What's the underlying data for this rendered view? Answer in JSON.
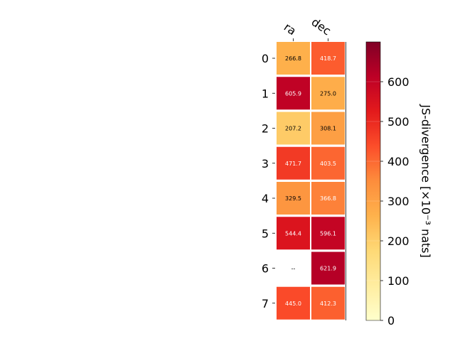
{
  "chart_data": {
    "type": "heatmap",
    "columns": [
      "ra",
      "dec"
    ],
    "rows": [
      "0",
      "1",
      "2",
      "3",
      "4",
      "5",
      "6",
      "7"
    ],
    "values": [
      [
        266.8,
        418.7
      ],
      [
        605.9,
        275.0
      ],
      [
        207.2,
        308.1
      ],
      [
        471.7,
        403.5
      ],
      [
        329.5,
        366.8
      ],
      [
        544.4,
        596.1
      ],
      [
        null,
        621.9
      ],
      [
        445.0,
        412.3
      ]
    ],
    "cell_labels": [
      [
        "266.8",
        "418.7"
      ],
      [
        "605.9",
        "275.0"
      ],
      [
        "207.2",
        "308.1"
      ],
      [
        "471.7",
        "403.5"
      ],
      [
        "329.5",
        "366.8"
      ],
      [
        "544.4",
        "596.1"
      ],
      [
        "--",
        "621.9"
      ],
      [
        "445.0",
        "412.3"
      ]
    ],
    "colorbar": {
      "label": "JS-divergence [×10⁻³ nats]",
      "vmin": 0,
      "vmax": 700,
      "ticks": [
        "0",
        "100",
        "200",
        "300",
        "400",
        "500",
        "600"
      ],
      "colormap": "YlOrRd",
      "colors": [
        "#ffffcc",
        "#ffeda0",
        "#fed976",
        "#feb24c",
        "#fd8d3c",
        "#fc4e2a",
        "#e31a1c",
        "#bd0026",
        "#800026"
      ]
    },
    "legend": false,
    "grid": false
  }
}
